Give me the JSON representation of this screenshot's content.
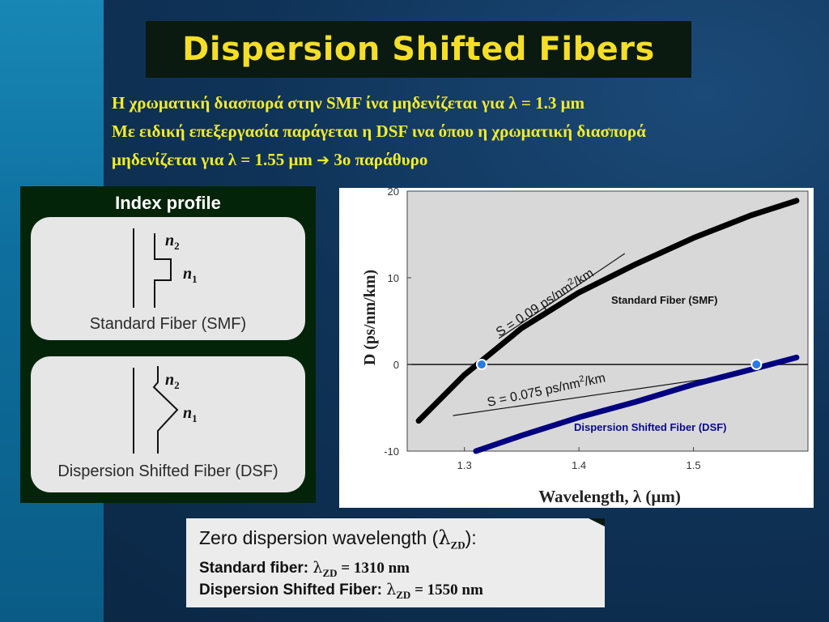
{
  "slide": {
    "title": "Dispersion Shifted Fibers",
    "intro": {
      "line1": "Η χρωματική διασπορά στην SMF ίνα μηδενίζεται για  λ = 1.3 μm",
      "line2": "Με ειδική επεξεργασία παράγεται η DSF ινα όπου η χρωματική διασπορά",
      "line3_text": "μηδενίζεται για  λ = 1.55 μm",
      "line3_arrow": "➔",
      "line3_tail": "3ο παράθυρο"
    }
  },
  "index_profile": {
    "title": "Index profile",
    "smf": {
      "label": "Standard Fiber (SMF)",
      "n2": "n",
      "n2_sub": "2",
      "n1": "n",
      "n1_sub": "1"
    },
    "dsf": {
      "label": "Dispersion Shifted Fiber (DSF)",
      "n2": "n",
      "n2_sub": "2",
      "n1": "n",
      "n1_sub": "1"
    }
  },
  "chart_data": {
    "type": "line",
    "xlabel": "Wavelength, λ (μm)",
    "ylabel": "D (ps/nm/km)",
    "xlim": [
      1.25,
      1.6
    ],
    "ylim": [
      -10,
      20
    ],
    "x_ticks": [
      "1.3",
      "1.4",
      "1.5"
    ],
    "y_ticks": [
      "20",
      "10",
      "0",
      "-10"
    ],
    "series": [
      {
        "name": "Standard Fiber (SMF)",
        "color": "#000000",
        "x": [
          1.26,
          1.3,
          1.35,
          1.4,
          1.45,
          1.5,
          1.55,
          1.59
        ],
        "y": [
          -6.5,
          -1.2,
          4.2,
          8.3,
          11.6,
          14.6,
          17.2,
          18.9
        ]
      },
      {
        "name": "Dispersion Shifted Fiber (DSF)",
        "color": "#000080",
        "x": [
          1.31,
          1.35,
          1.4,
          1.45,
          1.5,
          1.55,
          1.59
        ],
        "y": [
          -10,
          -8.2,
          -6.1,
          -4.3,
          -2.3,
          -0.6,
          0.8
        ]
      }
    ],
    "annotations": {
      "smf_slope": "S = 0.09 ps/nm",
      "smf_slope_unit": "/km",
      "dsf_slope": "S = 0.075 ps/nm",
      "dsf_slope_unit": "/km",
      "sup": "2"
    },
    "zero_crossings": [
      {
        "x": 1.315,
        "y": 0
      },
      {
        "x": 1.555,
        "y": 0
      }
    ],
    "grid": false
  },
  "zero_dispersion": {
    "heading": "Zero dispersion wavelength (",
    "heading_symbol": "λ",
    "heading_sub": "ZD",
    "heading_end": "):",
    "standard_label": "Standard fiber: ",
    "standard_value": " = 1310 nm",
    "dsf_label": "Dispersion Shifted Fiber: ",
    "dsf_value": " = 1550 nm",
    "symbol": "λ",
    "sub": "ZD"
  }
}
